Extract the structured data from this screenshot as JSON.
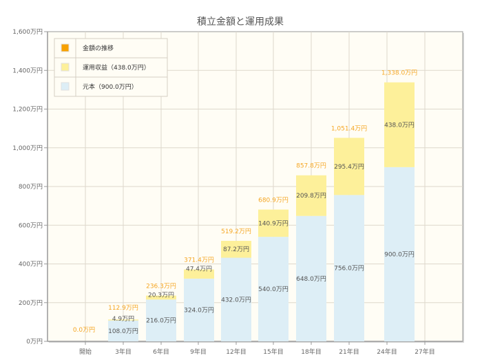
{
  "chart_data": {
    "type": "bar",
    "stacked": true,
    "title": "積立金額と運用成果",
    "xlabel": "",
    "ylabel": "",
    "ylim": [
      0,
      1600
    ],
    "y_ticks": [
      0,
      200,
      400,
      600,
      800,
      1000,
      1200,
      1400,
      1600
    ],
    "y_tick_labels": [
      "0万円",
      "200万円",
      "400万円",
      "600万円",
      "800万円",
      "1,000万円",
      "1,200万円",
      "1,400万円",
      "1,600万円"
    ],
    "categories": [
      "開始",
      "3年目",
      "6年目",
      "9年目",
      "12年目",
      "15年目",
      "18年目",
      "21年目",
      "24年目",
      "27年目"
    ],
    "grid": true,
    "legend_position": "top-left",
    "legend": [
      {
        "label": "金額の推移",
        "color": "#f7a100"
      },
      {
        "label": "運用収益（438.0万円）",
        "color": "#fdf09a"
      },
      {
        "label": "元本（900.0万円）",
        "color": "#ddeef6"
      }
    ],
    "series": [
      {
        "name": "元本",
        "color": "#ddeef6",
        "values": [
          0,
          108.0,
          216.0,
          324.0,
          432.0,
          540.0,
          648.0,
          756.0,
          900.0,
          null
        ],
        "labels": [
          null,
          "108.0万円",
          "216.0万円",
          "324.0万円",
          "432.0万円",
          "540.0万円",
          "648.0万円",
          "756.0万円",
          "900.0万円",
          null
        ]
      },
      {
        "name": "運用収益",
        "color": "#fdf09a",
        "values": [
          0,
          4.9,
          20.3,
          47.4,
          87.2,
          140.9,
          209.8,
          295.4,
          438.0,
          null
        ],
        "labels": [
          null,
          "4.9万円",
          "20.3万円",
          "47.4万円",
          "87.2万円",
          "140.9万円",
          "209.8万円",
          "295.4万円",
          "438.0万円",
          null
        ]
      }
    ],
    "totals": [
      0.0,
      112.9,
      236.3,
      371.4,
      519.2,
      680.9,
      857.8,
      1051.4,
      1338.0,
      null
    ],
    "total_labels": [
      "0.0万円",
      "112.9万円",
      "236.3万円",
      "371.4万円",
      "519.2万円",
      "680.9万円",
      "857.8万円",
      "1,051.4万円",
      "1,338.0万円",
      null
    ],
    "colors": {
      "plot_bg": "#fffdf5",
      "grid": "#ddd8cc",
      "axis": "#999999",
      "total_label": "#f5a623"
    }
  }
}
